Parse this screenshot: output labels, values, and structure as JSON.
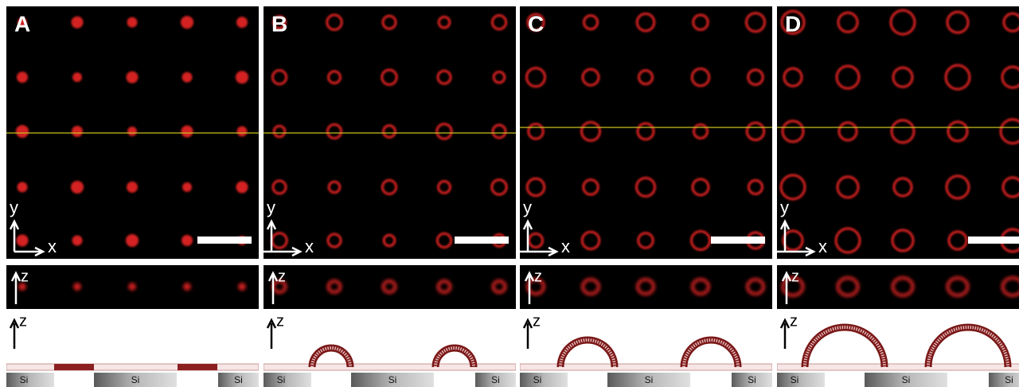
{
  "panels": [
    {
      "label": "A",
      "xy_axes": {
        "y": "y",
        "x": "x"
      },
      "xz_axis": "z",
      "diagram_axis": "z",
      "substrate": [
        "Si",
        "Si",
        "Si"
      ]
    },
    {
      "label": "B",
      "xy_axes": {
        "y": "y",
        "x": "x"
      },
      "xz_axis": "z",
      "diagram_axis": "z",
      "substrate": [
        "Si",
        "Si",
        "Si"
      ]
    },
    {
      "label": "C",
      "xy_axes": {
        "y": "y",
        "x": "x"
      },
      "xz_axis": "z",
      "diagram_axis": "z",
      "substrate": [
        "Si",
        "Si",
        "Si"
      ]
    },
    {
      "label": "D",
      "xy_axes": {
        "y": "y",
        "x": "x"
      },
      "xz_axis": "z",
      "diagram_axis": "z",
      "substrate": [
        "Si",
        "Si",
        "Si"
      ]
    }
  ]
}
